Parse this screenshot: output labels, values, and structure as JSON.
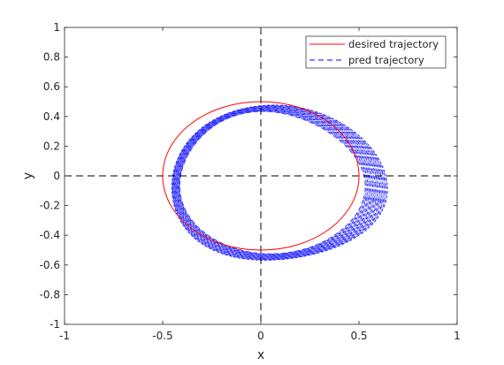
{
  "chart_data": {
    "type": "line",
    "xlabel": "x",
    "ylabel": "y",
    "xlim": [
      -1,
      1
    ],
    "ylim": [
      -1,
      1
    ],
    "xticks": [
      "-1",
      "-0.5",
      "0",
      "0.5",
      "1"
    ],
    "yticks": [
      "1",
      "0.8",
      "0.6",
      "0.4",
      "0.2",
      "0",
      "-0.2",
      "-0.4",
      "-0.6",
      "-0.8",
      "-1"
    ],
    "grid": false,
    "legend_placement": "top-right",
    "series": [
      {
        "name": "desired trajectory",
        "style": "solid",
        "color": "#ff0000",
        "shape": "ellipse",
        "center": [
          0,
          0
        ],
        "x_semi_axis": 0.5,
        "y_semi_axis": 0.5
      },
      {
        "name": "pred trajectory",
        "style": "dashed",
        "color": "#0000ff",
        "color_light": "#6464ff",
        "shape": "tilted band around ellipse",
        "x_range": [
          -0.52,
          0.68
        ],
        "y_range": [
          -0.6,
          0.5
        ]
      }
    ],
    "reference_lines": [
      {
        "orientation": "horizontal",
        "value": 0,
        "style": "dashed",
        "color": "#000000"
      },
      {
        "orientation": "vertical",
        "value": 0,
        "style": "dashed",
        "color": "#000000"
      }
    ]
  }
}
